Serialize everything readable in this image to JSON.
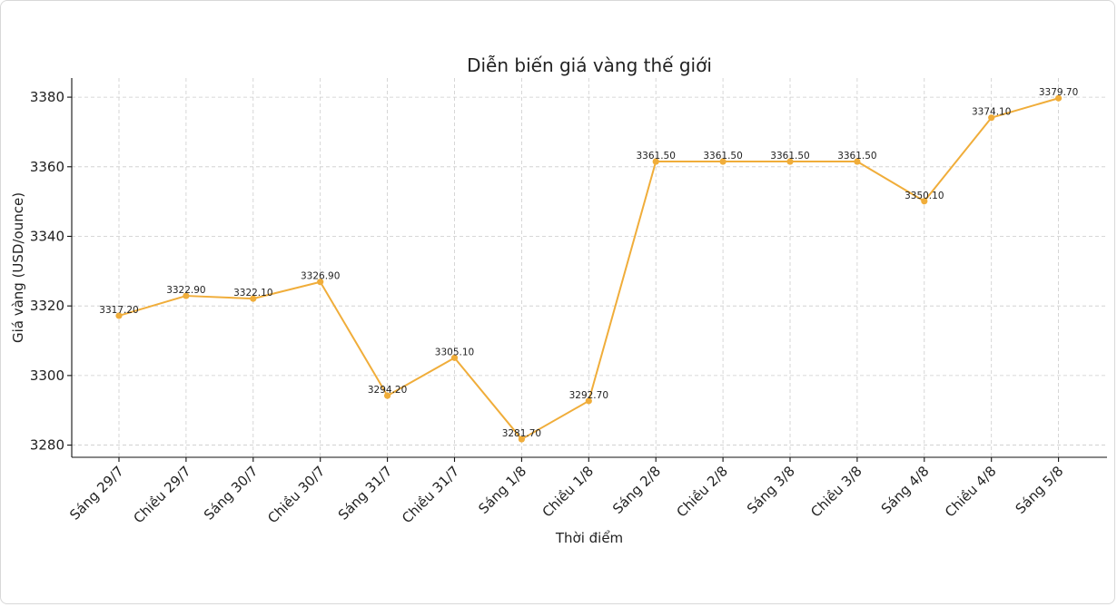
{
  "chart_data": {
    "type": "line",
    "title": "Diễn biến giá vàng thế giới",
    "xlabel": "Thời điểm",
    "ylabel": "Giá vàng (USD/ounce)",
    "ylim": [
      3276.5,
      3385.5
    ],
    "yticks": [
      3280,
      3300,
      3320,
      3340,
      3360,
      3380
    ],
    "grid": true,
    "color": "#f0ad3a",
    "categories": [
      "Sáng 29/7",
      "Chiều 29/7",
      "Sáng 30/7",
      "Chiều 30/7",
      "Sáng 31/7",
      "Chiều 31/7",
      "Sáng 1/8",
      "Chiều 1/8",
      "Sáng 2/8",
      "Chiều 2/8",
      "Sáng 3/8",
      "Chiều 3/8",
      "Sáng 4/8",
      "Chiều 4/8",
      "Sáng 5/8"
    ],
    "values": [
      3317.2,
      3322.9,
      3322.1,
      3326.9,
      3294.2,
      3305.1,
      3281.7,
      3292.7,
      3361.5,
      3361.5,
      3361.5,
      3361.5,
      3350.1,
      3374.1,
      3379.7
    ],
    "labels": [
      "3317.20",
      "3322.90",
      "3322.10",
      "3326.90",
      "3294.20",
      "3305.10",
      "3281.70",
      "3292.70",
      "3361.50",
      "3361.50",
      "3361.50",
      "3361.50",
      "3350.10",
      "3374.10",
      "3379.70"
    ]
  }
}
